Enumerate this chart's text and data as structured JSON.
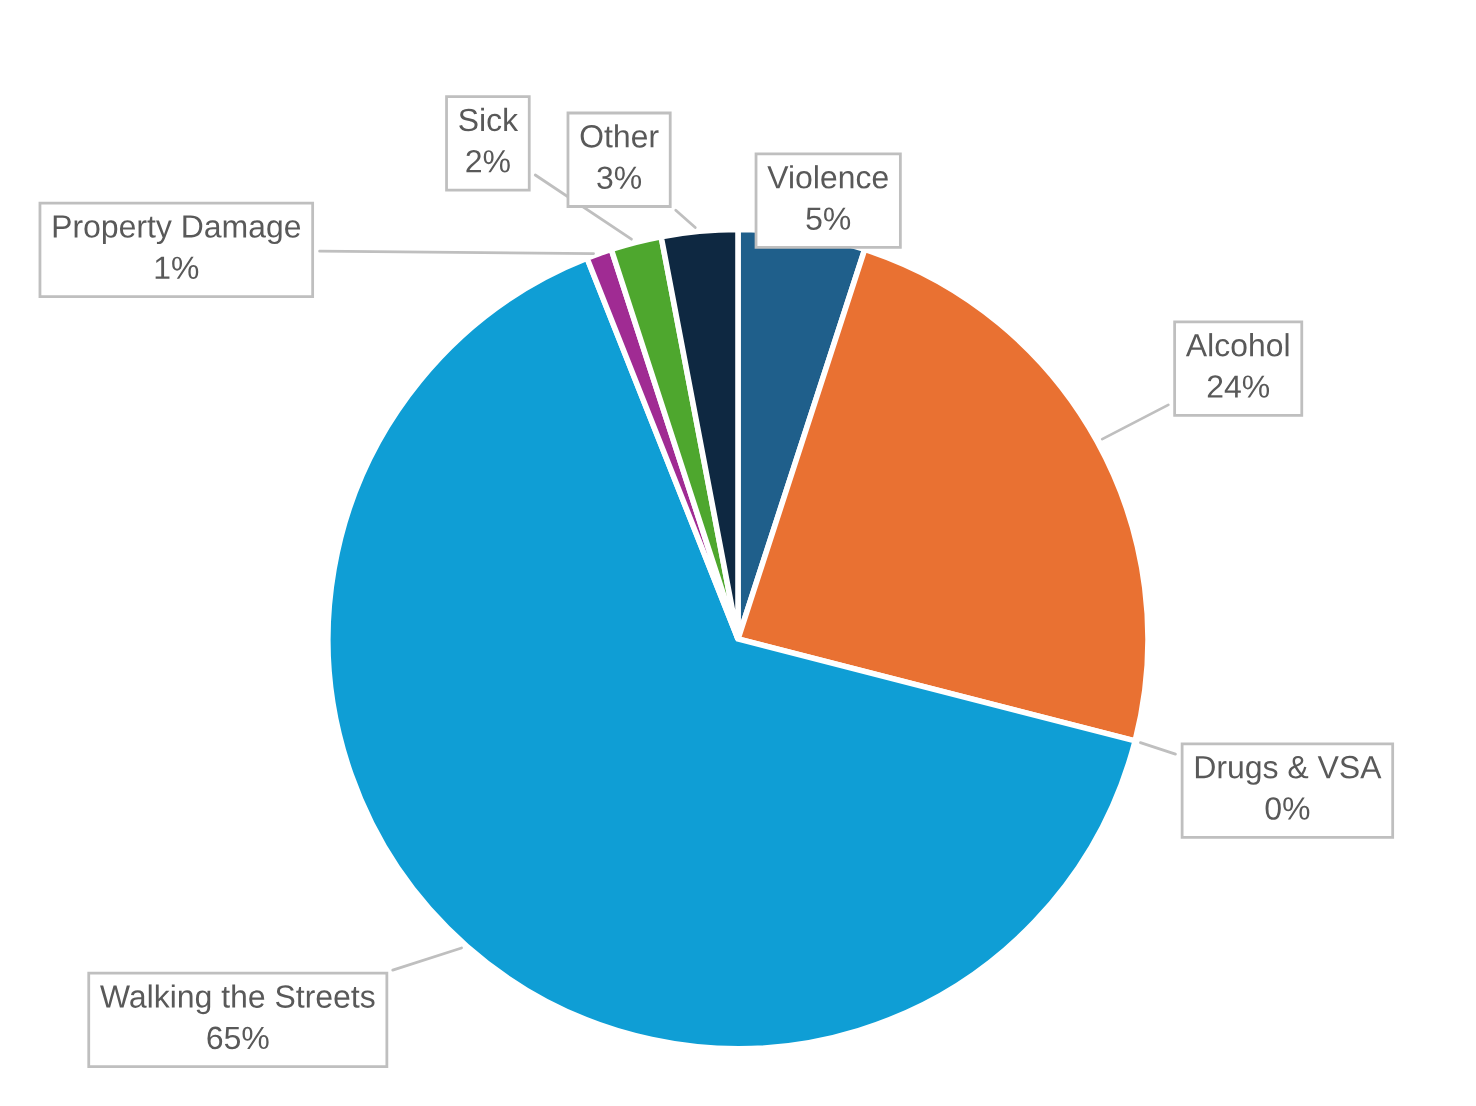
{
  "chart_data": {
    "type": "pie",
    "categories": [
      "Violence",
      "Alcohol",
      "Drugs & VSA",
      "Walking the Streets",
      "Property Damage",
      "Sick",
      "Other"
    ],
    "values": [
      5,
      24,
      0,
      65,
      1,
      2,
      3
    ],
    "value_labels": [
      "5%",
      "24%",
      "0%",
      "65%",
      "1%",
      "2%",
      "3%"
    ],
    "colors": [
      "#1f5f8b",
      "#e97132",
      "#196b24",
      "#0f9ed5",
      "#a02b93",
      "#4ea72e",
      "#0e2841"
    ]
  }
}
